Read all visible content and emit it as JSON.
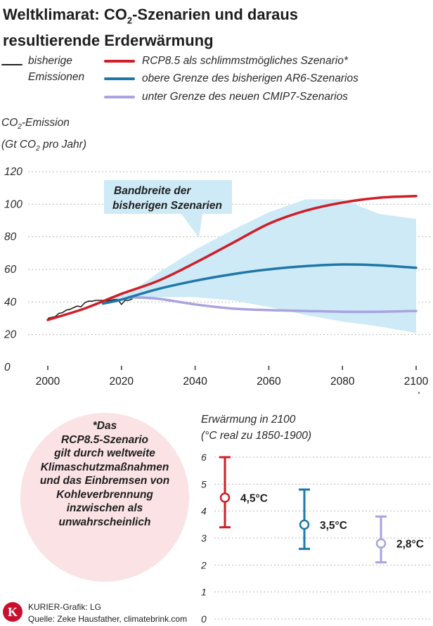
{
  "title": {
    "line1_pre": "Weltklimarat: CO",
    "line1_sub": "2",
    "line1_post": "-Szenarien und daraus",
    "line2": "resultierende Erderwärmung"
  },
  "legend": {
    "historic_line1": "bisherige",
    "historic_line2": "Emissionen",
    "rcp85": "RCP8.5 als schlimmstmögliches Szenario*",
    "ar6": "obere Grenze des bisherigen AR6-Szenarios",
    "cmip7": "unter Grenze des neuen CMIP7-Szenarios"
  },
  "colors": {
    "historic": "#222222",
    "rcp85": "#d01e28",
    "ar6": "#1f78a8",
    "cmip7": "#a9a3e0",
    "band": "#cdeaf6",
    "grid": "#b9b9b9",
    "note_bg": "#fbe2e5",
    "logo": "#c8102e"
  },
  "chart_data": [
    {
      "type": "line",
      "ylabel_line1_pre": "CO",
      "ylabel_line1_sub": "2",
      "ylabel_line1_post": "-Emission",
      "ylabel_line2_pre": "(Gt CO",
      "ylabel_line2_sub": "2",
      "ylabel_line2_post": " pro Jahr)",
      "xlim": [
        2000,
        2100
      ],
      "ylim": [
        0,
        120
      ],
      "x_ticks": [
        2000,
        2020,
        2040,
        2060,
        2080,
        2100
      ],
      "y_ticks": [
        0,
        20,
        40,
        60,
        80,
        100,
        120
      ],
      "grid": true,
      "band_label_line1": "Bandbreite der",
      "band_label_line2": "bisherigen Szenarien",
      "band": {
        "x": [
          2015,
          2020,
          2025,
          2030,
          2040,
          2050,
          2060,
          2070,
          2080,
          2090,
          2100
        ],
        "upper": [
          40,
          44,
          50,
          58,
          72,
          84,
          95,
          103,
          103,
          94,
          91
        ],
        "lower": [
          39,
          41,
          42,
          43,
          43,
          41,
          37,
          32,
          28,
          25,
          21
        ]
      },
      "series": [
        {
          "name": "historic",
          "x": [
            2000,
            2001,
            2002,
            2003,
            2004,
            2005,
            2006,
            2007,
            2008,
            2009,
            2010,
            2011,
            2012,
            2013,
            2014,
            2015,
            2016,
            2017,
            2018,
            2019,
            2020,
            2021,
            2022,
            2023
          ],
          "values": [
            30,
            30.5,
            31,
            33,
            33.5,
            35,
            35.5,
            36.5,
            37.5,
            37,
            39.5,
            40.5,
            40.5,
            41,
            41,
            41,
            40.5,
            41,
            41.5,
            41.5,
            38.5,
            41,
            41,
            42
          ]
        },
        {
          "name": "rcp85",
          "x": [
            2000,
            2010,
            2020,
            2030,
            2040,
            2050,
            2060,
            2070,
            2080,
            2090,
            2100
          ],
          "values": [
            29,
            36,
            45,
            53,
            64,
            76,
            88,
            96,
            101,
            104,
            105
          ]
        },
        {
          "name": "ar6",
          "x": [
            2015,
            2020,
            2030,
            2040,
            2050,
            2060,
            2070,
            2080,
            2090,
            2100
          ],
          "values": [
            39,
            41.5,
            48,
            53,
            57,
            60,
            62,
            63,
            62.5,
            61
          ]
        },
        {
          "name": "cmip7",
          "x": [
            2022,
            2030,
            2040,
            2050,
            2060,
            2070,
            2080,
            2090,
            2100
          ],
          "values": [
            43,
            42,
            38.5,
            36,
            35,
            34.5,
            34,
            34,
            34.5
          ]
        }
      ]
    },
    {
      "type": "scatter",
      "title_line1": "Erwärmung in 2100",
      "title_line2": "(°C real zu 1850-1900)",
      "ylim": [
        0,
        6
      ],
      "y_ticks": [
        0,
        1,
        2,
        3,
        4,
        5,
        6
      ],
      "grid": true,
      "points": [
        {
          "name": "rcp85",
          "value": 4.5,
          "low": 3.4,
          "high": 6.0,
          "label": "4,5°C"
        },
        {
          "name": "ar6",
          "value": 3.5,
          "low": 2.6,
          "high": 4.8,
          "label": "3,5°C"
        },
        {
          "name": "cmip7",
          "value": 2.8,
          "low": 2.1,
          "high": 3.8,
          "label": "2,8°C"
        }
      ]
    }
  ],
  "note": {
    "line1": "*Das",
    "line2": "RCP8.5-Szenario",
    "line3": "gilt durch weltweite",
    "line4": "Klimaschutzmaßnahmen",
    "line5": "und das Einbremsen von",
    "line6": "Kohleverbrennung",
    "line7": "inzwischen als",
    "line8": "unwahrscheinlich"
  },
  "logo_letter": "K",
  "credit": {
    "line1": "KURIER-Grafik: LG",
    "line2": "Quelle: Zeke Hausfather, climatebrink.com"
  }
}
